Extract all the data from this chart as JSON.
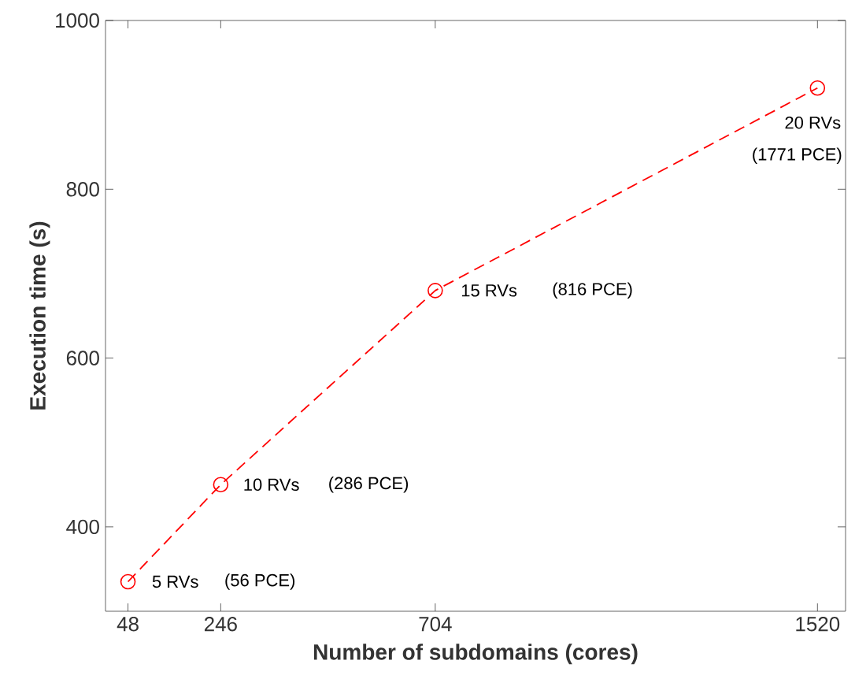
{
  "chart_data": {
    "type": "line",
    "xlabel": "Number of subdomains (cores)",
    "ylabel": "Execution time (s)",
    "x": [
      48,
      246,
      704,
      1520
    ],
    "series": [
      {
        "color": "#ff0000",
        "values": [
          335,
          450,
          680,
          920
        ]
      }
    ],
    "xlim": [
      0,
      1580
    ],
    "ylim": [
      300,
      1000
    ],
    "xticks": [
      48,
      246,
      704,
      1520
    ],
    "yticks": [
      400,
      600,
      800,
      1000
    ],
    "marker": "circle",
    "line_style": "dashed",
    "grid": false,
    "annotations": [
      {
        "text": "5 RVs",
        "x": 48,
        "y": 335
      },
      "(56 PCE)",
      {
        "text": "10 RVs",
        "x": 246,
        "y": 450
      },
      "(286 PCE)",
      {
        "text": "15 RVs",
        "x": 704,
        "y": 680
      },
      "(816 PCE)",
      {
        "text": "20 RVs",
        "x": 1520,
        "y": 920
      },
      "(1771 PCE)"
    ]
  }
}
